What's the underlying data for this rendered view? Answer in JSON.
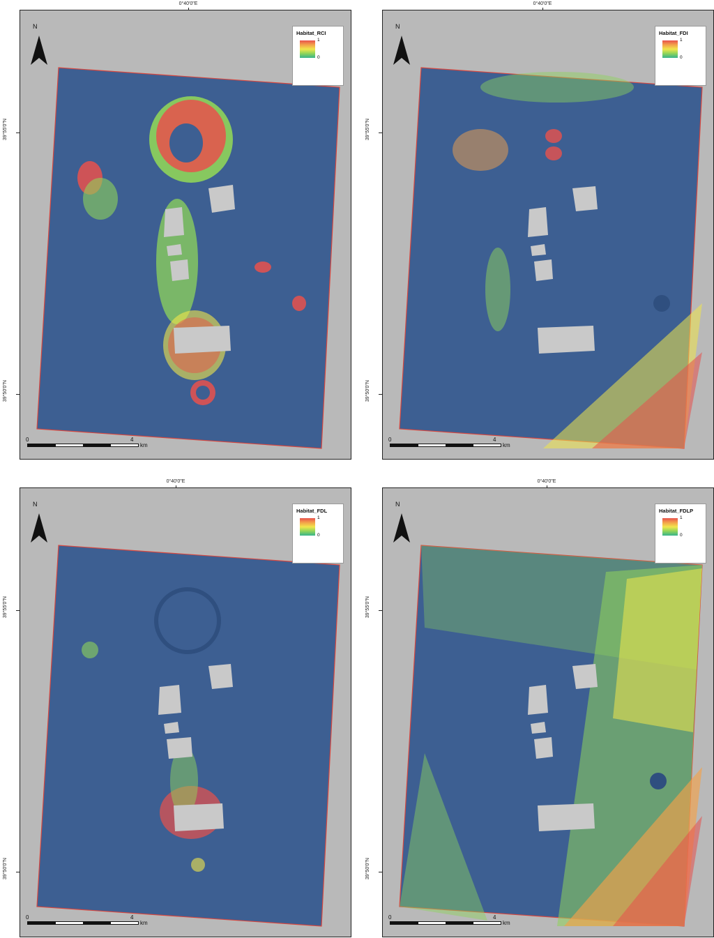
{
  "lon_label": "0°40'0\"E",
  "lat_top": "39°55'0\"N",
  "lat_bottom": "39°50'0\"N",
  "north_label": "N",
  "scale": {
    "start": "0",
    "mid": "4",
    "unit": "km"
  },
  "panels": [
    {
      "legend_title": "Habitat_RCI",
      "legend_max": "1",
      "legend_min": "0"
    },
    {
      "legend_title": "Habitat_FDI",
      "legend_max": "1",
      "legend_min": "0"
    },
    {
      "legend_title": "Habitat_FDL",
      "legend_max": "1",
      "legend_min": "0"
    },
    {
      "legend_title": "Habitat_FDLP",
      "legend_max": "1",
      "legend_min": "0"
    }
  ],
  "colors": {
    "background_sea": "#3d5f92",
    "hillshade": "#b9b9b9",
    "outline": "#d8473f",
    "high": "#e8514c",
    "mid": "#f1e64b",
    "low": "#37b38c",
    "island": "#c9c9c9"
  }
}
